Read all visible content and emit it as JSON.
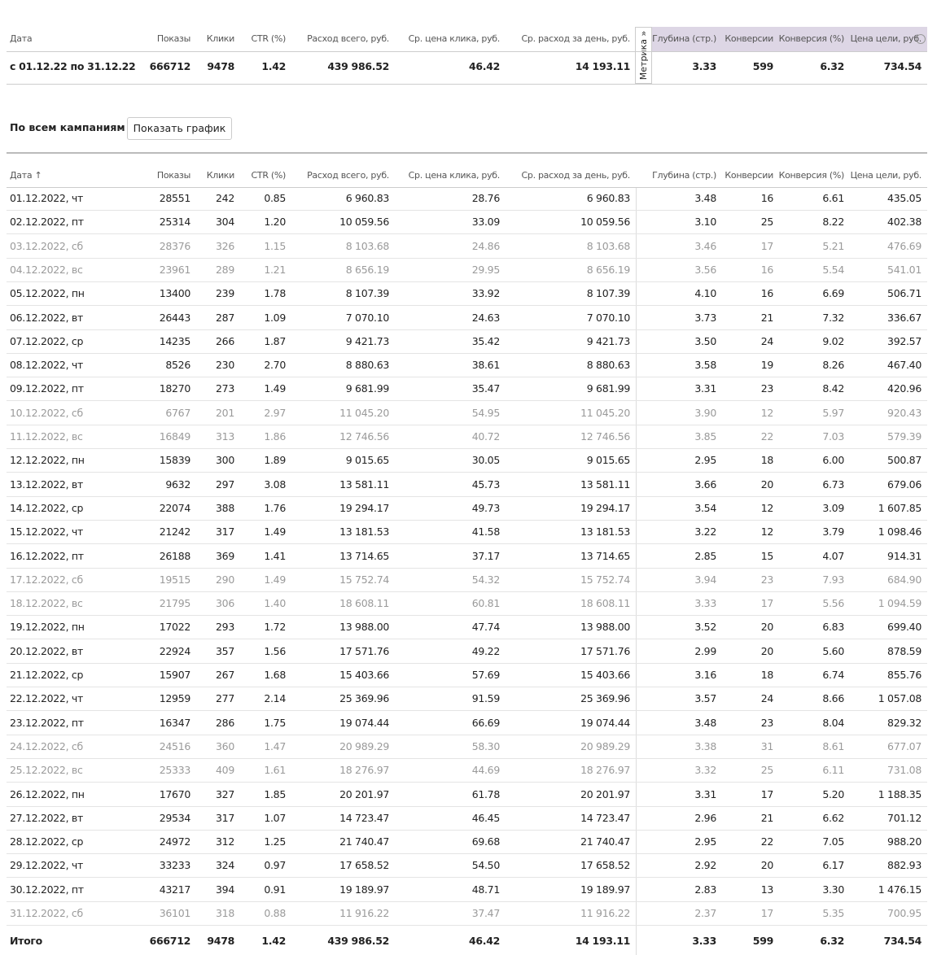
{
  "summary": {
    "headers": [
      "Дата",
      "Показы",
      "Клики",
      "CTR (%)",
      "Расход всего, руб.",
      "Ср. цена клика, руб.",
      "Ср. расход за день, руб.",
      "Глубина (стр.)",
      "Конверсии",
      "Конверсия (%)",
      "Цена цели, руб."
    ],
    "row": [
      "с 01.12.22 по 31.12.22",
      "666712",
      "9478",
      "1.42",
      "439 986.52",
      "46.42",
      "14 193.11",
      "3.33",
      "599",
      "6.32",
      "734.54"
    ],
    "metrika_tab": "Метрика »"
  },
  "section_title": "По всем кампаниям",
  "button": "Показать график",
  "table": {
    "headers": [
      "Дата ↑",
      "Показы",
      "Клики",
      "CTR (%)",
      "Расход всего, руб.",
      "Ср. цена клика, руб.",
      "Ср. расход за день, руб.",
      "Глубина (стр.)",
      "Конверсии",
      "Конверсия (%)",
      "Цена цели, руб."
    ],
    "rows": [
      {
        "color": "#222",
        "cells": [
          "01.12.2022, чт",
          "28551",
          "242",
          "0.85",
          "6 960.83",
          "28.76",
          "6 960.83",
          "3.48",
          "16",
          "6.61",
          "435.05"
        ]
      },
      {
        "color": "#222",
        "cells": [
          "02.12.2022, пт",
          "25314",
          "304",
          "1.20",
          "10 059.56",
          "33.09",
          "10 059.56",
          "3.10",
          "25",
          "8.22",
          "402.38"
        ]
      },
      {
        "color": "#9a9a9a",
        "cells": [
          "03.12.2022, сб",
          "28376",
          "326",
          "1.15",
          "8 103.68",
          "24.86",
          "8 103.68",
          "3.46",
          "17",
          "5.21",
          "476.69"
        ]
      },
      {
        "color": "#9a9a9a",
        "cells": [
          "04.12.2022, вс",
          "23961",
          "289",
          "1.21",
          "8 656.19",
          "29.95",
          "8 656.19",
          "3.56",
          "16",
          "5.54",
          "541.01"
        ]
      },
      {
        "color": "#222",
        "cells": [
          "05.12.2022, пн",
          "13400",
          "239",
          "1.78",
          "8 107.39",
          "33.92",
          "8 107.39",
          "4.10",
          "16",
          "6.69",
          "506.71"
        ]
      },
      {
        "color": "#222",
        "cells": [
          "06.12.2022, вт",
          "26443",
          "287",
          "1.09",
          "7 070.10",
          "24.63",
          "7 070.10",
          "3.73",
          "21",
          "7.32",
          "336.67"
        ]
      },
      {
        "color": "#222",
        "cells": [
          "07.12.2022, ср",
          "14235",
          "266",
          "1.87",
          "9 421.73",
          "35.42",
          "9 421.73",
          "3.50",
          "24",
          "9.02",
          "392.57"
        ]
      },
      {
        "color": "#222",
        "cells": [
          "08.12.2022, чт",
          "8526",
          "230",
          "2.70",
          "8 880.63",
          "38.61",
          "8 880.63",
          "3.58",
          "19",
          "8.26",
          "467.40"
        ]
      },
      {
        "color": "#222",
        "cells": [
          "09.12.2022, пт",
          "18270",
          "273",
          "1.49",
          "9 681.99",
          "35.47",
          "9 681.99",
          "3.31",
          "23",
          "8.42",
          "420.96"
        ]
      },
      {
        "color": "#9a9a9a",
        "cells": [
          "10.12.2022, сб",
          "6767",
          "201",
          "2.97",
          "11 045.20",
          "54.95",
          "11 045.20",
          "3.90",
          "12",
          "5.97",
          "920.43"
        ]
      },
      {
        "color": "#9a9a9a",
        "cells": [
          "11.12.2022, вс",
          "16849",
          "313",
          "1.86",
          "12 746.56",
          "40.72",
          "12 746.56",
          "3.85",
          "22",
          "7.03",
          "579.39"
        ]
      },
      {
        "color": "#222",
        "cells": [
          "12.12.2022, пн",
          "15839",
          "300",
          "1.89",
          "9 015.65",
          "30.05",
          "9 015.65",
          "2.95",
          "18",
          "6.00",
          "500.87"
        ]
      },
      {
        "color": "#222",
        "cells": [
          "13.12.2022, вт",
          "9632",
          "297",
          "3.08",
          "13 581.11",
          "45.73",
          "13 581.11",
          "3.66",
          "20",
          "6.73",
          "679.06"
        ]
      },
      {
        "color": "#222",
        "cells": [
          "14.12.2022, ср",
          "22074",
          "388",
          "1.76",
          "19 294.17",
          "49.73",
          "19 294.17",
          "3.54",
          "12",
          "3.09",
          "1 607.85"
        ]
      },
      {
        "color": "#222",
        "cells": [
          "15.12.2022, чт",
          "21242",
          "317",
          "1.49",
          "13 181.53",
          "41.58",
          "13 181.53",
          "3.22",
          "12",
          "3.79",
          "1 098.46"
        ]
      },
      {
        "color": "#222",
        "cells": [
          "16.12.2022, пт",
          "26188",
          "369",
          "1.41",
          "13 714.65",
          "37.17",
          "13 714.65",
          "2.85",
          "15",
          "4.07",
          "914.31"
        ]
      },
      {
        "color": "#9a9a9a",
        "cells": [
          "17.12.2022, сб",
          "19515",
          "290",
          "1.49",
          "15 752.74",
          "54.32",
          "15 752.74",
          "3.94",
          "23",
          "7.93",
          "684.90"
        ]
      },
      {
        "color": "#9a9a9a",
        "cells": [
          "18.12.2022, вс",
          "21795",
          "306",
          "1.40",
          "18 608.11",
          "60.81",
          "18 608.11",
          "3.33",
          "17",
          "5.56",
          "1 094.59"
        ]
      },
      {
        "color": "#222",
        "cells": [
          "19.12.2022, пн",
          "17022",
          "293",
          "1.72",
          "13 988.00",
          "47.74",
          "13 988.00",
          "3.52",
          "20",
          "6.83",
          "699.40"
        ]
      },
      {
        "color": "#222",
        "cells": [
          "20.12.2022, вт",
          "22924",
          "357",
          "1.56",
          "17 571.76",
          "49.22",
          "17 571.76",
          "2.99",
          "20",
          "5.60",
          "878.59"
        ]
      },
      {
        "color": "#222",
        "cells": [
          "21.12.2022, ср",
          "15907",
          "267",
          "1.68",
          "15 403.66",
          "57.69",
          "15 403.66",
          "3.16",
          "18",
          "6.74",
          "855.76"
        ]
      },
      {
        "color": "#222",
        "cells": [
          "22.12.2022, чт",
          "12959",
          "277",
          "2.14",
          "25 369.96",
          "91.59",
          "25 369.96",
          "3.57",
          "24",
          "8.66",
          "1 057.08"
        ]
      },
      {
        "color": "#222",
        "cells": [
          "23.12.2022, пт",
          "16347",
          "286",
          "1.75",
          "19 074.44",
          "66.69",
          "19 074.44",
          "3.48",
          "23",
          "8.04",
          "829.32"
        ]
      },
      {
        "color": "#9a9a9a",
        "cells": [
          "24.12.2022, сб",
          "24516",
          "360",
          "1.47",
          "20 989.29",
          "58.30",
          "20 989.29",
          "3.38",
          "31",
          "8.61",
          "677.07"
        ]
      },
      {
        "color": "#9a9a9a",
        "cells": [
          "25.12.2022, вс",
          "25333",
          "409",
          "1.61",
          "18 276.97",
          "44.69",
          "18 276.97",
          "3.32",
          "25",
          "6.11",
          "731.08"
        ]
      },
      {
        "color": "#222",
        "cells": [
          "26.12.2022, пн",
          "17670",
          "327",
          "1.85",
          "20 201.97",
          "61.78",
          "20 201.97",
          "3.31",
          "17",
          "5.20",
          "1 188.35"
        ]
      },
      {
        "color": "#222",
        "cells": [
          "27.12.2022, вт",
          "29534",
          "317",
          "1.07",
          "14 723.47",
          "46.45",
          "14 723.47",
          "2.96",
          "21",
          "6.62",
          "701.12"
        ]
      },
      {
        "color": "#222",
        "cells": [
          "28.12.2022, ср",
          "24972",
          "312",
          "1.25",
          "21 740.47",
          "69.68",
          "21 740.47",
          "2.95",
          "22",
          "7.05",
          "988.20"
        ]
      },
      {
        "color": "#222",
        "cells": [
          "29.12.2022, чт",
          "33233",
          "324",
          "0.97",
          "17 658.52",
          "54.50",
          "17 658.52",
          "2.92",
          "20",
          "6.17",
          "882.93"
        ]
      },
      {
        "color": "#222",
        "cells": [
          "30.12.2022, пт",
          "43217",
          "394",
          "0.91",
          "19 189.97",
          "48.71",
          "19 189.97",
          "2.83",
          "13",
          "3.30",
          "1 476.15"
        ]
      },
      {
        "color": "#9a9a9a",
        "cells": [
          "31.12.2022, сб",
          "36101",
          "318",
          "0.88",
          "11 916.22",
          "37.47",
          "11 916.22",
          "2.37",
          "17",
          "5.35",
          "700.95"
        ]
      }
    ],
    "total": [
      "Итого",
      "666712",
      "9478",
      "1.42",
      "439 986.52",
      "46.42",
      "14 193.11",
      "3.33",
      "599",
      "6.32",
      "734.54"
    ]
  }
}
